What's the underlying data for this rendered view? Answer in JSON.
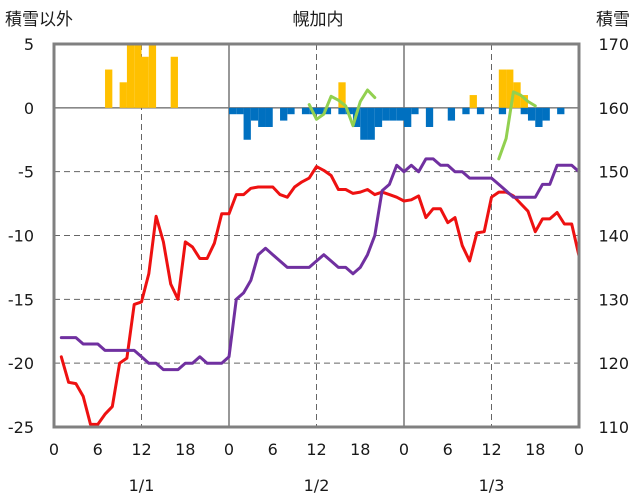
{
  "chart_data": {
    "type": "line",
    "title": "幌加内",
    "ylabel_left": "積雪以外",
    "ylabel_right": "積雪",
    "x_ticks": [
      "0",
      "6",
      "12",
      "18",
      "0",
      "6",
      "12",
      "18",
      "0",
      "6",
      "12",
      "18",
      "0"
    ],
    "date_labels": [
      "1/1",
      "1/2",
      "1/3"
    ],
    "y_left_ticks": [
      "5",
      "0",
      "-5",
      "-10",
      "-15",
      "-20",
      "-25"
    ],
    "y_right_ticks": [
      "170",
      "160",
      "150",
      "140",
      "130",
      "120",
      "110"
    ],
    "ylim_left": [
      -25,
      5
    ],
    "ylim_right": [
      110,
      170
    ],
    "xlim_hours": [
      0,
      72
    ],
    "grid": true,
    "colors": {
      "temperature": "#ee1111",
      "humidity_index": "#7030a0",
      "snow_depth": "#92d050",
      "snowfall": "#ffc000",
      "negative_bars": "#0070c0",
      "grid": "#666666",
      "frame": "#808080"
    },
    "series": [
      {
        "key": "red",
        "axis": "left",
        "color": "#ee1111",
        "x": [
          1,
          2,
          3,
          4,
          5,
          6,
          7,
          8,
          9,
          10,
          11,
          12,
          13,
          14,
          15,
          16,
          17,
          18,
          19,
          20,
          21,
          22,
          23,
          24,
          25,
          26,
          27,
          28,
          29,
          30,
          31,
          32,
          33,
          34,
          35,
          36,
          37,
          38,
          39,
          40,
          41,
          42,
          43,
          44,
          45,
          46,
          47,
          48,
          49,
          50,
          51,
          52,
          53,
          54,
          55,
          56,
          57,
          58,
          59,
          60,
          61,
          62,
          63,
          64,
          65,
          66,
          67,
          68,
          69,
          70,
          71,
          72
        ],
        "y": [
          -19.5,
          -21.5,
          -21.6,
          -22.6,
          -24.8,
          -24.8,
          -24,
          -23.4,
          -20,
          -19.6,
          -15.4,
          -15.2,
          -13,
          -8.5,
          -10.5,
          -13.8,
          -15,
          -10.5,
          -10.9,
          -11.8,
          -11.8,
          -10.6,
          -8.3,
          -8.3,
          -6.8,
          -6.8,
          -6.3,
          -6.2,
          -6.2,
          -6.2,
          -6.8,
          -7,
          -6.2,
          -5.8,
          -5.5,
          -4.6,
          -4.9,
          -5.3,
          -6.4,
          -6.4,
          -6.7,
          -6.6,
          -6.4,
          -6.8,
          -6.6,
          -6.8,
          -7,
          -7.3,
          -7.2,
          -6.9,
          -8.6,
          -7.9,
          -7.9,
          -9,
          -8.6,
          -10.8,
          -12,
          -9.8,
          -9.7,
          -7,
          -6.6,
          -6.6,
          -6.9,
          -7.5,
          -8.1,
          -9.7,
          -8.7,
          -8.7,
          -8.2,
          -9.1,
          -9.1,
          -11.6
        ]
      },
      {
        "key": "purple",
        "axis": "left",
        "color": "#7030a0",
        "x": [
          1,
          2,
          3,
          4,
          5,
          6,
          7,
          8,
          9,
          10,
          11,
          12,
          13,
          14,
          15,
          16,
          17,
          18,
          19,
          20,
          21,
          22,
          23,
          24,
          25,
          26,
          27,
          28,
          29,
          30,
          31,
          32,
          33,
          34,
          35,
          36,
          37,
          38,
          39,
          40,
          41,
          42,
          43,
          44,
          45,
          46,
          47,
          48,
          49,
          50,
          51,
          52,
          53,
          54,
          55,
          56,
          57,
          58,
          59,
          60,
          61,
          62,
          63,
          64,
          65,
          66,
          67,
          68,
          69,
          70,
          71,
          72
        ],
        "y": [
          -18,
          -18,
          -18,
          -18.5,
          -18.5,
          -18.5,
          -19,
          -19,
          -19,
          -19,
          -19,
          -19.5,
          -20,
          -20,
          -20.5,
          -20.5,
          -20.5,
          -20,
          -20,
          -19.5,
          -20,
          -20,
          -20,
          -19.5,
          -15,
          -14.5,
          -13.5,
          -11.5,
          -11,
          -11.5,
          -12,
          -12.5,
          -12.5,
          -12.5,
          -12.5,
          -12,
          -11.5,
          -12,
          -12.5,
          -12.5,
          -13,
          -12.5,
          -11.5,
          -10,
          -6.5,
          -6,
          -4.5,
          -5,
          -4.5,
          -5,
          -4,
          -4,
          -4.5,
          -4.5,
          -5,
          -5,
          -5.5,
          -5.5,
          -5.5,
          -5.5,
          -6,
          -6.5,
          -7,
          -7,
          -7,
          -7,
          -6,
          -6,
          -4.5,
          -4.5,
          -4.5,
          -5
        ]
      },
      {
        "key": "green",
        "axis": "right",
        "color": "#92d050",
        "segments": [
          {
            "x": [
              35,
              36,
              37,
              38,
              39,
              40,
              41,
              42,
              43,
              44,
              45
            ],
            "y": [
              160.5,
              158.2,
              159,
              161.8,
              161.2,
              160.3,
              157.2,
              161,
              162.8,
              161.6,
              null
            ]
          },
          {
            "x": [
              61,
              62,
              63,
              64,
              65,
              66
            ],
            "y": [
              152,
              155.2,
              162.5,
              162,
              161,
              160.3
            ]
          }
        ]
      }
    ],
    "bars": [
      {
        "key": "positive",
        "axis": "left",
        "color": "#ffc000",
        "x": [
          8,
          10,
          11,
          12,
          13,
          14,
          17,
          40,
          58,
          62,
          63,
          64,
          65
        ],
        "y": [
          3,
          2,
          5,
          5,
          4,
          5,
          4,
          2,
          1,
          3,
          3,
          2,
          1
        ]
      },
      {
        "key": "negative",
        "axis": "left",
        "color": "#0070c0",
        "x": [
          25,
          26,
          27,
          28,
          29,
          30,
          32,
          33,
          35,
          36,
          37,
          38,
          40,
          41,
          42,
          43,
          44,
          45,
          46,
          47,
          48,
          49,
          50,
          52,
          55,
          57,
          59,
          62,
          65,
          66,
          67,
          68,
          70
        ],
        "y": [
          -0.5,
          -0.5,
          -2.5,
          -1,
          -1.5,
          -1.5,
          -1,
          -0.5,
          -0.5,
          -0.5,
          -0.5,
          -0.5,
          -0.5,
          -0.5,
          -1.5,
          -2.5,
          -2.5,
          -1.5,
          -1,
          -1,
          -1,
          -1.5,
          -0.5,
          -1.5,
          -1,
          -0.5,
          -0.5,
          -0.5,
          -0.5,
          -1,
          -1.5,
          -1,
          -0.5
        ]
      }
    ]
  }
}
